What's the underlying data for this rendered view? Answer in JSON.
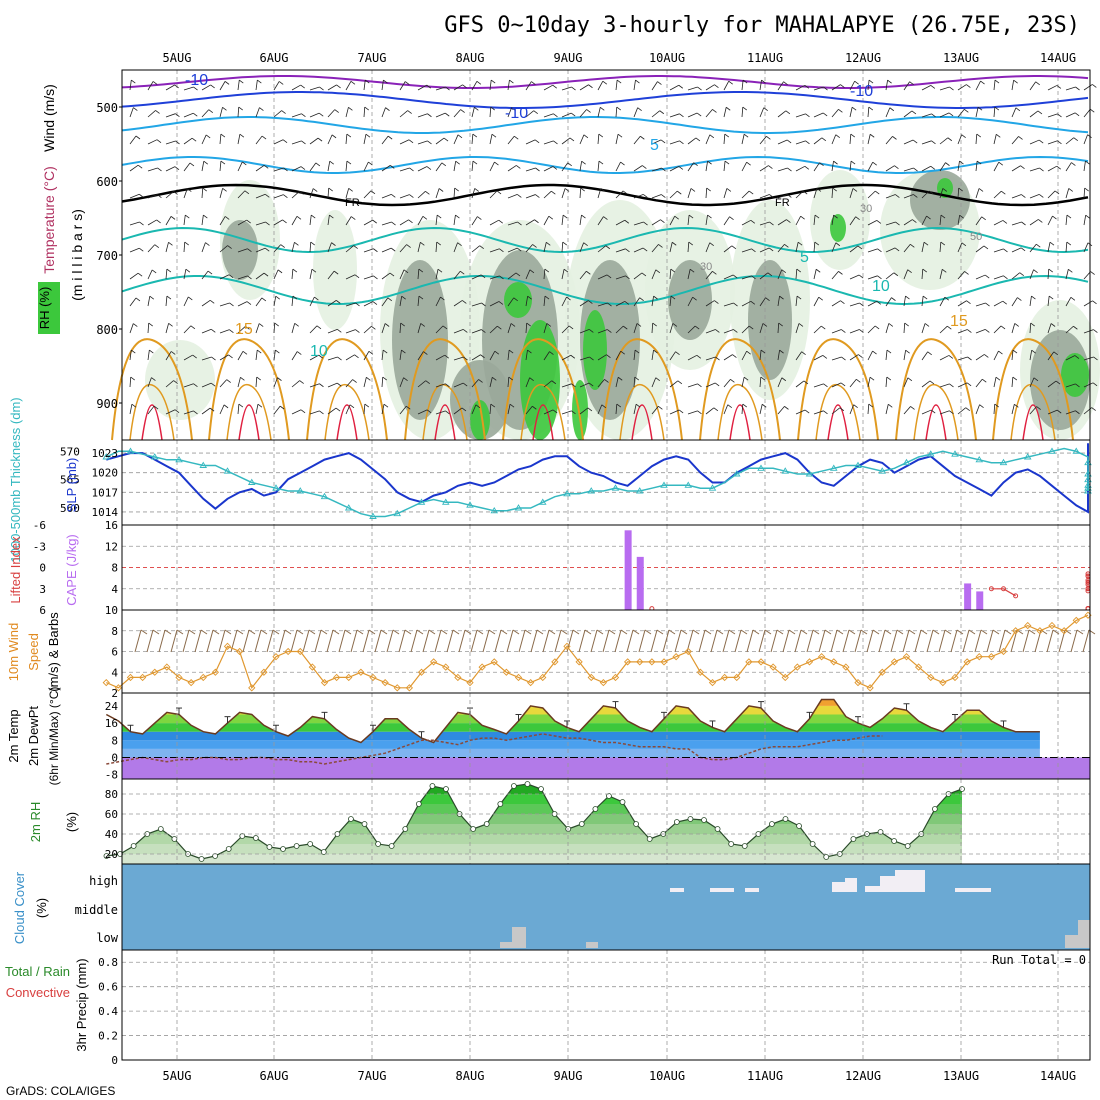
{
  "title": "GFS 0~10day 3-hourly for MAHALAPYE (26.75E, 23S)",
  "footer": "GrADS: COLA/IGES",
  "date_labels": [
    "5AUG",
    "6AUG",
    "7AUG",
    "8AUG",
    "9AUG",
    "10AUG",
    "11AUG",
    "12AUG",
    "13AUG",
    "14AUG"
  ],
  "colors": {
    "rh_green": "#3cc83c",
    "rh_dark": "#9aa89a",
    "rh_light": "#e4f1e1",
    "temp_violet": "#8a22b8",
    "temp_blue": "#1f40d8",
    "temp_sky": "#22a6e6",
    "temp_teal": "#1ab8b0",
    "temp_orange": "#e09a20",
    "temp_red": "#e02040",
    "slp_blue": "#1a36cc",
    "thick_cyan": "#35b8c0",
    "cape_violet": "#b86cf0",
    "li_red": "#d84040",
    "wind_orange": "#e09830",
    "barb_brown": "#8a6a4a",
    "cloud_blue": "#6ba9d3"
  },
  "panels": {
    "upper": {
      "ylabel_wind": "Wind (m/s)",
      "ylabel_temp": "Temperature (°C)",
      "ylabel_rh": "RH (%)",
      "ylabel_mb": "(m i l l i b a r s)",
      "yticks": [
        "500",
        "600",
        "700",
        "800",
        "900"
      ],
      "contour_labels": [
        "-10",
        "-10",
        "-10",
        "5",
        "5",
        "10",
        "10",
        "15",
        "15",
        "FR",
        "FR",
        "30",
        "30",
        "50"
      ]
    },
    "slp": {
      "ylabel_left": "1000-500mb Thickness (dm)",
      "ylabel_right": "SLP (mb)",
      "left_ticks": [
        "570",
        "565",
        "560"
      ],
      "right_ticks": [
        "1023",
        "1020",
        "1017",
        "1014"
      ]
    },
    "cape": {
      "ylabel_left": "Lifted Index",
      "ylabel_right": "CAPE (J/kg)",
      "left_ticks": [
        "-6",
        "-3",
        "0",
        "3",
        "6"
      ],
      "right_ticks": [
        "16",
        "12",
        "8",
        "4"
      ]
    },
    "wind10": {
      "ylabel_a": "10m Wind",
      "ylabel_b": "Speed",
      "ylabel_c": "(m/s) & Barbs",
      "yticks": [
        "10",
        "8",
        "6",
        "4",
        "2"
      ]
    },
    "temp2m": {
      "ylabel_a": "2m Temp",
      "ylabel_b": "2m DewPt",
      "ylabel_c": "(6hr Min/Max) (°C)",
      "yticks": [
        "24",
        "16",
        "8",
        "0",
        "-8"
      ]
    },
    "rh2m": {
      "ylabel_a": "2m RH",
      "ylabel_b": "(%)",
      "yticks": [
        "80",
        "60",
        "40",
        "20"
      ]
    },
    "cloud": {
      "ylabel_a": "Cloud Cover",
      "ylabel_b": "(%)",
      "levels": [
        "high",
        "middle",
        "low"
      ]
    },
    "precip": {
      "ylabel_a": "Total / Rain",
      "ylabel_b": "Convective",
      "ylabel_c": "3hr Precip (mm)",
      "yticks": [
        "0.8",
        "0.6",
        "0.4",
        "0.2",
        "0"
      ],
      "run_total": "Run Total = 0"
    }
  },
  "chart_data": [
    {
      "type": "line",
      "name_hint": "sea level pressure and thickness",
      "x_unit": "3-hour steps from first output",
      "series": [
        {
          "name": "SLP (mb)",
          "values": [
            1022,
            1022.5,
            1023,
            1023,
            1022,
            1021,
            1020,
            1018,
            1016,
            1014.5,
            1016,
            1017,
            1017.5,
            1016.5,
            1017,
            1019,
            1020,
            1021,
            1022,
            1022.5,
            1023,
            1022,
            1020.5,
            1019,
            1017,
            1016,
            1015.5,
            1016.5,
            1017,
            1018,
            1018.5,
            1018,
            1018.5,
            1019.5,
            1020.5,
            1021,
            1022,
            1022.5,
            1022.5,
            1021,
            1020,
            1019.5,
            1018.5,
            1018,
            1019.5,
            1021,
            1022,
            1022.5,
            1022,
            1020,
            1018.5,
            1018.5,
            1020,
            1021,
            1022,
            1022.5,
            1023,
            1022,
            1020,
            1018.5,
            1018,
            1019.5,
            1021,
            1022,
            1021.5,
            1020,
            1021,
            1022,
            1022.5,
            1021,
            1019.5,
            1018.5,
            1017.5,
            1016.5,
            1018.5,
            1020,
            1020.5,
            1019.5,
            1018,
            1016.5,
            1015,
            1014,
            1016,
            1018,
            1020,
            1021,
            1021.5,
            1021,
            1019.5,
            1018.5,
            1019,
            1021,
            1022,
            1023,
            1024,
            1024.5
          ]
        },
        {
          "name": "Thickness (dm)",
          "values": [
            569,
            570,
            570,
            569.5,
            569,
            568.5,
            568.5,
            568,
            567.5,
            567.5,
            566.5,
            565.5,
            564.5,
            564,
            563.5,
            563,
            563,
            562.5,
            562,
            561,
            560,
            559,
            558.5,
            558.5,
            559,
            560,
            561,
            561.5,
            561,
            561,
            560.5,
            560,
            559.5,
            559.5,
            560,
            560,
            561,
            562,
            562.5,
            562.5,
            563,
            563,
            563.5,
            563,
            563,
            563.5,
            564,
            564,
            564,
            563.5,
            563.5,
            564.5,
            566,
            567,
            567,
            567,
            566.5,
            566,
            566,
            566.5,
            567,
            567.5,
            567.5,
            567,
            566.5,
            567,
            568,
            569,
            569.5,
            570,
            569.5,
            569,
            568.5,
            568,
            568,
            568.5,
            569,
            569.5,
            570,
            570.5,
            570,
            569,
            568,
            567,
            566,
            565.5,
            565,
            564.5,
            564,
            563.5,
            563.5,
            563,
            563,
            563,
            563
          ]
        }
      ]
    },
    {
      "type": "bar",
      "name_hint": "CAPE and lifted index",
      "series": [
        {
          "name": "CAPE (J/kg)",
          "values": [
            0,
            0,
            0,
            0,
            0,
            0,
            0,
            0,
            0,
            0,
            0,
            0,
            0,
            0,
            0,
            0,
            0,
            0,
            0,
            0,
            0,
            0,
            0,
            0,
            0,
            0,
            0,
            0,
            0,
            0,
            0,
            0,
            0,
            0,
            0,
            0,
            0,
            0,
            0,
            0,
            0,
            0,
            0,
            15,
            10,
            0,
            0,
            0,
            0,
            0,
            0,
            0,
            0,
            0,
            0,
            0,
            0,
            0,
            0,
            0,
            0,
            0,
            0,
            0,
            0,
            0,
            0,
            0,
            0,
            0,
            0,
            5,
            3.5,
            0,
            0,
            0,
            0,
            0,
            0,
            0,
            0,
            0,
            0,
            0,
            0,
            0,
            0,
            0,
            0,
            0,
            0,
            0,
            0,
            0,
            0,
            0
          ]
        },
        {
          "name": "Lifted Index",
          "values": [
            null,
            null,
            null,
            null,
            null,
            null,
            null,
            null,
            null,
            null,
            null,
            null,
            null,
            null,
            null,
            null,
            null,
            null,
            null,
            null,
            null,
            null,
            null,
            null,
            null,
            null,
            null,
            null,
            null,
            null,
            null,
            null,
            null,
            null,
            null,
            null,
            null,
            null,
            null,
            null,
            null,
            null,
            null,
            null,
            null,
            5.8,
            null,
            null,
            null,
            null,
            null,
            null,
            null,
            null,
            null,
            null,
            null,
            null,
            null,
            null,
            null,
            null,
            null,
            null,
            null,
            null,
            null,
            null,
            null,
            null,
            null,
            null,
            null,
            3,
            3,
            4,
            null,
            null,
            null,
            null,
            null,
            5.8,
            5.8,
            5.8,
            null,
            null,
            null,
            null,
            null,
            null,
            5.8,
            5.8,
            5.8,
            null,
            null,
            null,
            null,
            null,
            3.3,
            1.2,
            1.2,
            1.8,
            2.4,
            3.0,
            3.0,
            2.1,
            0.9
          ]
        }
      ]
    },
    {
      "type": "line",
      "name_hint": "10m wind speed",
      "series": [
        {
          "name": "10m Wind Speed (m/s)",
          "values": [
            3,
            2.5,
            3.5,
            3.5,
            4,
            4.5,
            3.5,
            3,
            3.5,
            4,
            6.5,
            6,
            2.5,
            4,
            5.5,
            6,
            6,
            4.5,
            3,
            3.5,
            3.5,
            4,
            3.5,
            3,
            2.5,
            2.5,
            4,
            5,
            4.5,
            3.5,
            3,
            4.5,
            5,
            4,
            3.5,
            3,
            3.5,
            5,
            6.5,
            5,
            3.5,
            3,
            3.5,
            5,
            5,
            5,
            5,
            5.5,
            6,
            4,
            3,
            3.5,
            3.5,
            5,
            5,
            4.5,
            3.5,
            4.5,
            5,
            5.5,
            5,
            4.5,
            3,
            2.5,
            4,
            5,
            5.5,
            4.5,
            3.5,
            3,
            3.5,
            5,
            5.5,
            5.5,
            6,
            8,
            8.5,
            8,
            8.5,
            8,
            9,
            9.5
          ]
        }
      ]
    },
    {
      "type": "area",
      "name_hint": "2m temperature and dew point",
      "series": [
        {
          "name": "2m Temp (°C)",
          "values": [
            20,
            17,
            12,
            11,
            16,
            21,
            20,
            15,
            12,
            11,
            16,
            21,
            20,
            15,
            12,
            10,
            14,
            19,
            18,
            13,
            9,
            7,
            12,
            18,
            18,
            13,
            9,
            7,
            14,
            21,
            20,
            15,
            13,
            11,
            17,
            24,
            23,
            17,
            14,
            12,
            18,
            24,
            23,
            17,
            14,
            12,
            18,
            24,
            23,
            17,
            14,
            12,
            18,
            24,
            23,
            17,
            14,
            12,
            18,
            27,
            27,
            19,
            16,
            14,
            18,
            23,
            22,
            17,
            14,
            12,
            17,
            22,
            22,
            17,
            14,
            12,
            12,
            12
          ]
        },
        {
          "name": "2m DewPt (°C)",
          "values": [
            -3,
            -2,
            -1,
            0,
            -1,
            -2,
            -1,
            -1,
            0,
            0,
            -1,
            -1,
            0,
            0,
            -1,
            -1,
            -2,
            -2,
            -3,
            -2,
            -1,
            0,
            1,
            2,
            4,
            6,
            8,
            8,
            7,
            6,
            8,
            9,
            9,
            8,
            9,
            10,
            11,
            10,
            9,
            9,
            8,
            7,
            7,
            6,
            5,
            5,
            5,
            4,
            4,
            0,
            -1,
            -1,
            0,
            2,
            4,
            5,
            5,
            5,
            6,
            7,
            8,
            8,
            9,
            10,
            10
          ]
        }
      ]
    },
    {
      "type": "area",
      "name_hint": "2m relative humidity",
      "series": [
        {
          "name": "2m RH (%)",
          "values": [
            18,
            20,
            28,
            40,
            45,
            35,
            20,
            15,
            18,
            25,
            38,
            36,
            27,
            25,
            28,
            30,
            22,
            40,
            55,
            50,
            30,
            28,
            45,
            70,
            88,
            85,
            60,
            45,
            50,
            70,
            88,
            90,
            85,
            60,
            45,
            50,
            65,
            78,
            72,
            50,
            35,
            40,
            52,
            55,
            54,
            45,
            30,
            28,
            40,
            50,
            55,
            48,
            30,
            17,
            20,
            35,
            40,
            42,
            33,
            28,
            40,
            65,
            80,
            85
          ]
        }
      ]
    },
    {
      "type": "bar",
      "name_hint": "cloud cover",
      "levels": [
        "high",
        "middle",
        "low"
      ]
    },
    {
      "type": "bar",
      "name_hint": "3hr precip",
      "ylim": [
        0,
        0.9
      ],
      "values": []
    }
  ]
}
